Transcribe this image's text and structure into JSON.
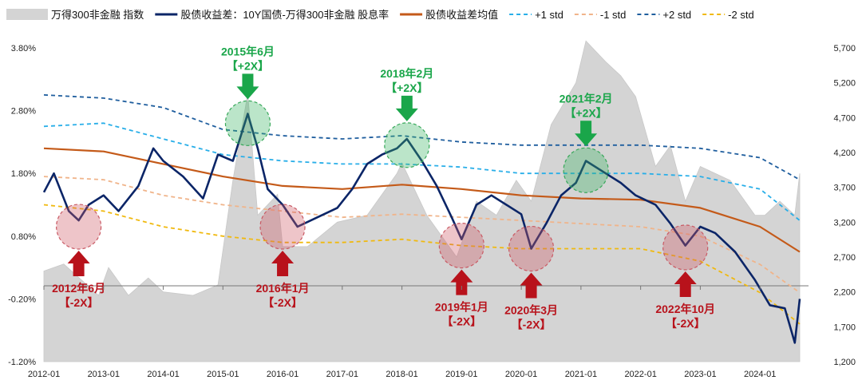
{
  "chart_data": {
    "type": "line",
    "title": "",
    "legend_position": "top",
    "x_axis": {
      "start": "2012-01",
      "end": "2024-09",
      "ticks": [
        "2012-01",
        "2013-01",
        "2014-01",
        "2015-01",
        "2016-01",
        "2017-01",
        "2018-01",
        "2019-01",
        "2020-01",
        "2021-01",
        "2022-01",
        "2023-01",
        "2024-01"
      ]
    },
    "y_left": {
      "label": "",
      "range": [
        -1.2,
        3.8
      ],
      "ticks": [
        -1.2,
        -0.2,
        0.8,
        1.8,
        2.8,
        3.8
      ],
      "tick_labels": [
        "-1.20%",
        "-0.20%",
        "0.80%",
        "1.80%",
        "2.80%",
        "3.80%"
      ]
    },
    "y_right": {
      "label": "",
      "range": [
        1200,
        5700
      ],
      "ticks": [
        1200,
        1700,
        2200,
        2700,
        3200,
        3700,
        4200,
        4700,
        5200,
        5700
      ],
      "tick_labels": [
        "1,200",
        "1,700",
        "2,200",
        "2,700",
        "3,200",
        "3,700",
        "4,200",
        "4,700",
        "5,200",
        "5,700"
      ]
    },
    "legend": [
      {
        "key": "index",
        "name": "万得300非金融 指数",
        "color": "#d4d4d4",
        "style": "area"
      },
      {
        "key": "spread",
        "name": "股债收益差：10Y国债-万得300非金融 股息率",
        "color": "#0b2567",
        "style": "solid"
      },
      {
        "key": "mean",
        "name": "股债收益差均值",
        "color": "#c45a19",
        "style": "solid"
      },
      {
        "key": "p1",
        "name": "+1 std",
        "color": "#28aee8",
        "style": "dashed"
      },
      {
        "key": "m1",
        "name": "-1 std",
        "color": "#f0b48a",
        "style": "dashed"
      },
      {
        "key": "p2",
        "name": "+2 std",
        "color": "#1f5e9e",
        "style": "dashed"
      },
      {
        "key": "m2",
        "name": "-2 std",
        "color": "#f0b90f",
        "style": "dashed"
      }
    ],
    "series": [
      {
        "name": "万得300非金融 指数",
        "axis": "right",
        "type": "area",
        "points": [
          [
            "2012-01",
            2500
          ],
          [
            "2012-05",
            2600
          ],
          [
            "2012-12",
            2150
          ],
          [
            "2013-02",
            2550
          ],
          [
            "2013-06",
            2150
          ],
          [
            "2013-10",
            2400
          ],
          [
            "2014-01",
            2200
          ],
          [
            "2014-07",
            2150
          ],
          [
            "2014-12",
            2300
          ],
          [
            "2015-03",
            3800
          ],
          [
            "2015-06",
            5050
          ],
          [
            "2015-08",
            3300
          ],
          [
            "2015-12",
            3600
          ],
          [
            "2016-01",
            2850
          ],
          [
            "2016-06",
            2850
          ],
          [
            "2016-12",
            3200
          ],
          [
            "2017-06",
            3300
          ],
          [
            "2017-12",
            3900
          ],
          [
            "2018-01",
            4050
          ],
          [
            "2018-06",
            3300
          ],
          [
            "2018-12",
            2700
          ],
          [
            "2019-04",
            3500
          ],
          [
            "2019-08",
            3300
          ],
          [
            "2019-12",
            3800
          ],
          [
            "2020-03",
            3500
          ],
          [
            "2020-07",
            4600
          ],
          [
            "2020-12",
            5200
          ],
          [
            "2021-02",
            5800
          ],
          [
            "2021-06",
            5500
          ],
          [
            "2021-09",
            5300
          ],
          [
            "2021-12",
            5000
          ],
          [
            "2022-04",
            4000
          ],
          [
            "2022-07",
            4300
          ],
          [
            "2022-10",
            3500
          ],
          [
            "2023-01",
            4000
          ],
          [
            "2023-07",
            3800
          ],
          [
            "2023-12",
            3300
          ],
          [
            "2024-02",
            3300
          ],
          [
            "2024-05",
            3500
          ],
          [
            "2024-08",
            3300
          ],
          [
            "2024-09",
            3900
          ]
        ]
      },
      {
        "name": "股债收益差：10Y国债-万得300非金融 股息率",
        "axis": "left",
        "type": "line",
        "points": [
          [
            "2012-01",
            1.5
          ],
          [
            "2012-03",
            1.8
          ],
          [
            "2012-06",
            1.2
          ],
          [
            "2012-08",
            1.05
          ],
          [
            "2012-10",
            1.3
          ],
          [
            "2013-01",
            1.45
          ],
          [
            "2013-04",
            1.2
          ],
          [
            "2013-08",
            1.6
          ],
          [
            "2013-11",
            2.2
          ],
          [
            "2014-01",
            2.0
          ],
          [
            "2014-05",
            1.75
          ],
          [
            "2014-09",
            1.4
          ],
          [
            "2014-12",
            2.1
          ],
          [
            "2015-03",
            2.0
          ],
          [
            "2015-06",
            2.75
          ],
          [
            "2015-08",
            2.2
          ],
          [
            "2015-10",
            1.55
          ],
          [
            "2016-01",
            1.3
          ],
          [
            "2016-04",
            0.95
          ],
          [
            "2016-08",
            1.1
          ],
          [
            "2016-12",
            1.25
          ],
          [
            "2017-03",
            1.55
          ],
          [
            "2017-06",
            1.95
          ],
          [
            "2017-09",
            2.1
          ],
          [
            "2017-12",
            2.2
          ],
          [
            "2018-02",
            2.35
          ],
          [
            "2018-05",
            2.0
          ],
          [
            "2018-08",
            1.6
          ],
          [
            "2018-11",
            1.1
          ],
          [
            "2019-01",
            0.75
          ],
          [
            "2019-04",
            1.3
          ],
          [
            "2019-07",
            1.45
          ],
          [
            "2019-10",
            1.3
          ],
          [
            "2020-01",
            1.15
          ],
          [
            "2020-03",
            0.6
          ],
          [
            "2020-06",
            1.0
          ],
          [
            "2020-09",
            1.45
          ],
          [
            "2020-12",
            1.65
          ],
          [
            "2021-02",
            2.0
          ],
          [
            "2021-05",
            1.85
          ],
          [
            "2021-09",
            1.65
          ],
          [
            "2021-12",
            1.45
          ],
          [
            "2022-04",
            1.3
          ],
          [
            "2022-07",
            1.0
          ],
          [
            "2022-10",
            0.65
          ],
          [
            "2023-01",
            0.95
          ],
          [
            "2023-04",
            0.85
          ],
          [
            "2023-08",
            0.55
          ],
          [
            "2023-12",
            0.1
          ],
          [
            "2024-03",
            -0.3
          ],
          [
            "2024-06",
            -0.35
          ],
          [
            "2024-08",
            -0.9
          ],
          [
            "2024-09",
            -0.2
          ]
        ]
      },
      {
        "name": "股债收益差均值",
        "axis": "left",
        "type": "line",
        "points": [
          [
            "2012-01",
            2.2
          ],
          [
            "2013-01",
            2.15
          ],
          [
            "2014-01",
            1.95
          ],
          [
            "2015-01",
            1.75
          ],
          [
            "2016-01",
            1.6
          ],
          [
            "2017-01",
            1.55
          ],
          [
            "2018-01",
            1.62
          ],
          [
            "2019-01",
            1.55
          ],
          [
            "2020-01",
            1.45
          ],
          [
            "2021-01",
            1.4
          ],
          [
            "2022-01",
            1.38
          ],
          [
            "2023-01",
            1.25
          ],
          [
            "2024-01",
            0.95
          ],
          [
            "2024-09",
            0.55
          ]
        ]
      },
      {
        "name": "+1 std",
        "axis": "left",
        "type": "line",
        "points": [
          [
            "2012-01",
            2.55
          ],
          [
            "2013-01",
            2.6
          ],
          [
            "2014-01",
            2.35
          ],
          [
            "2015-01",
            2.1
          ],
          [
            "2016-01",
            2.0
          ],
          [
            "2017-01",
            1.95
          ],
          [
            "2018-01",
            1.95
          ],
          [
            "2019-01",
            1.9
          ],
          [
            "2020-01",
            1.8
          ],
          [
            "2021-01",
            1.8
          ],
          [
            "2022-01",
            1.8
          ],
          [
            "2023-01",
            1.75
          ],
          [
            "2024-01",
            1.55
          ],
          [
            "2024-09",
            1.05
          ]
        ]
      },
      {
        "name": "-1 std",
        "axis": "left",
        "type": "line",
        "points": [
          [
            "2012-01",
            1.75
          ],
          [
            "2013-01",
            1.7
          ],
          [
            "2014-01",
            1.45
          ],
          [
            "2015-01",
            1.3
          ],
          [
            "2016-01",
            1.2
          ],
          [
            "2017-01",
            1.1
          ],
          [
            "2018-01",
            1.15
          ],
          [
            "2019-01",
            1.1
          ],
          [
            "2020-01",
            1.05
          ],
          [
            "2021-01",
            1.0
          ],
          [
            "2022-01",
            0.95
          ],
          [
            "2023-01",
            0.8
          ],
          [
            "2024-01",
            0.35
          ],
          [
            "2024-09",
            -0.1
          ]
        ]
      },
      {
        "name": "+2 std",
        "axis": "left",
        "type": "line",
        "points": [
          [
            "2012-01",
            3.05
          ],
          [
            "2013-01",
            3.0
          ],
          [
            "2014-01",
            2.85
          ],
          [
            "2015-01",
            2.5
          ],
          [
            "2016-01",
            2.4
          ],
          [
            "2017-01",
            2.35
          ],
          [
            "2018-01",
            2.4
          ],
          [
            "2019-01",
            2.3
          ],
          [
            "2020-01",
            2.25
          ],
          [
            "2021-01",
            2.25
          ],
          [
            "2022-01",
            2.25
          ],
          [
            "2023-01",
            2.2
          ],
          [
            "2024-01",
            2.05
          ],
          [
            "2024-09",
            1.7
          ]
        ]
      },
      {
        "name": "-2 std",
        "axis": "left",
        "type": "line",
        "points": [
          [
            "2012-01",
            1.3
          ],
          [
            "2013-01",
            1.2
          ],
          [
            "2014-01",
            0.95
          ],
          [
            "2015-01",
            0.8
          ],
          [
            "2016-01",
            0.7
          ],
          [
            "2017-01",
            0.7
          ],
          [
            "2018-01",
            0.75
          ],
          [
            "2019-01",
            0.65
          ],
          [
            "2020-01",
            0.6
          ],
          [
            "2021-01",
            0.6
          ],
          [
            "2022-01",
            0.6
          ],
          [
            "2023-01",
            0.4
          ],
          [
            "2024-01",
            -0.1
          ],
          [
            "2024-09",
            -0.6
          ]
        ]
      }
    ],
    "annotations": [
      {
        "label": "2015年6月",
        "tag": "【+2X】",
        "date": "2015-06",
        "value": 2.6,
        "kind": "up"
      },
      {
        "label": "2018年2月",
        "tag": "【+2X】",
        "date": "2018-02",
        "value": 2.25,
        "kind": "up"
      },
      {
        "label": "2021年2月",
        "tag": "【+2X】",
        "date": "2021-02",
        "value": 1.85,
        "kind": "up"
      },
      {
        "label": "2012年6月",
        "tag": "【-2X】",
        "date": "2012-08",
        "value": 0.95,
        "kind": "down"
      },
      {
        "label": "2016年1月",
        "tag": "【-2X】",
        "date": "2016-01",
        "value": 0.95,
        "kind": "down"
      },
      {
        "label": "2019年1月",
        "tag": "【-2X】",
        "date": "2019-01",
        "value": 0.65,
        "kind": "down"
      },
      {
        "label": "2020年3月",
        "tag": "【-2X】",
        "date": "2020-03",
        "value": 0.6,
        "kind": "down"
      },
      {
        "label": "2022年10月",
        "tag": "【-2X】",
        "date": "2022-10",
        "value": 0.62,
        "kind": "down"
      }
    ]
  }
}
